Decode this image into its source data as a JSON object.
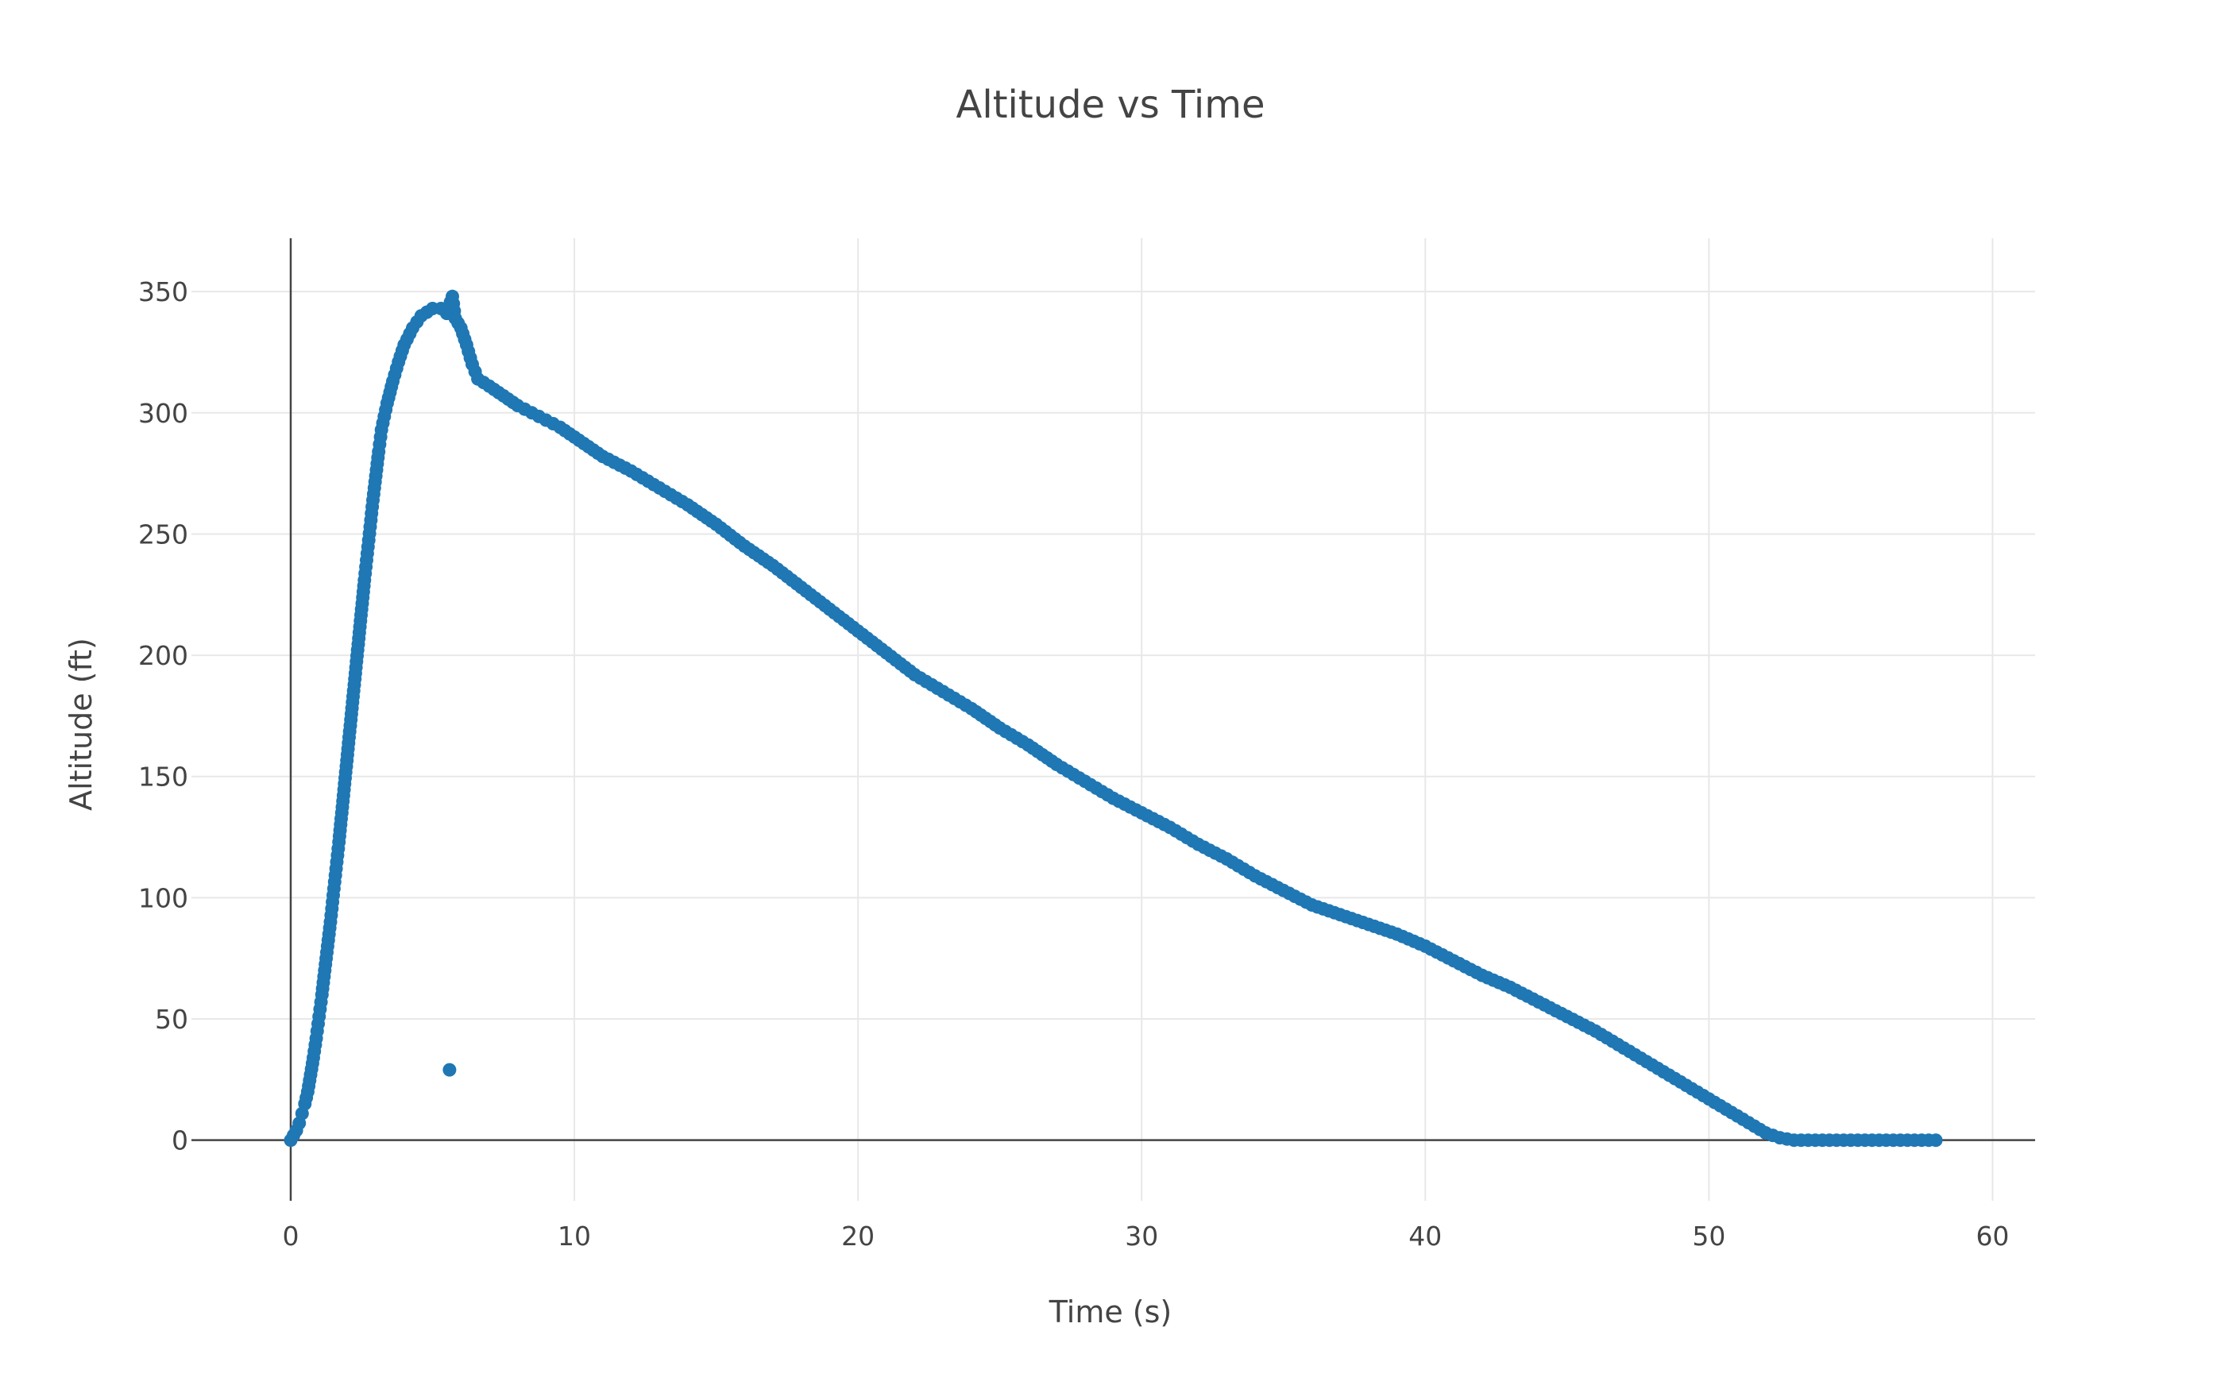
{
  "chart_data": {
    "type": "scatter",
    "title": "Altitude vs Time",
    "xlabel": "Time (s)",
    "ylabel": "Altitude (ft)",
    "xlim": [
      -3.5,
      61.5
    ],
    "ylim": [
      -25,
      372
    ],
    "x_ticks": [
      0,
      10,
      20,
      30,
      40,
      50,
      60
    ],
    "y_ticks": [
      0,
      50,
      100,
      150,
      200,
      250,
      300,
      350
    ],
    "grid": true,
    "legend": "none",
    "marker_color": "#1f77b4",
    "series": [
      {
        "values": [
          [
            0.0,
            0
          ],
          [
            0.1,
            2
          ],
          [
            0.2,
            4
          ],
          [
            0.3,
            7
          ],
          [
            0.4,
            11
          ],
          [
            0.5,
            15
          ],
          [
            0.6,
            20
          ],
          [
            0.7,
            27
          ],
          [
            0.8,
            34
          ],
          [
            0.9,
            42
          ],
          [
            1.0,
            51
          ],
          [
            1.1,
            60
          ],
          [
            1.2,
            70
          ],
          [
            1.3,
            80
          ],
          [
            1.4,
            90
          ],
          [
            1.5,
            101
          ],
          [
            1.6,
            112
          ],
          [
            1.7,
            123
          ],
          [
            1.8,
            135
          ],
          [
            1.9,
            147
          ],
          [
            2.0,
            159
          ],
          [
            2.1,
            171
          ],
          [
            2.2,
            183
          ],
          [
            2.3,
            195
          ],
          [
            2.4,
            207
          ],
          [
            2.5,
            219
          ],
          [
            2.6,
            231
          ],
          [
            2.7,
            242
          ],
          [
            2.8,
            253
          ],
          [
            2.9,
            264
          ],
          [
            3.0,
            274
          ],
          [
            3.1,
            284
          ],
          [
            3.2,
            293
          ],
          [
            3.4,
            304
          ],
          [
            3.6,
            313
          ],
          [
            3.8,
            321
          ],
          [
            4.0,
            328
          ],
          [
            4.3,
            335
          ],
          [
            4.6,
            340
          ],
          [
            5.0,
            343
          ],
          [
            5.3,
            343
          ],
          [
            5.5,
            341
          ],
          [
            5.7,
            348
          ],
          [
            5.8,
            339
          ],
          [
            6.0,
            335
          ],
          [
            6.2,
            328
          ],
          [
            6.4,
            320
          ],
          [
            6.6,
            314
          ],
          [
            7.0,
            311
          ],
          [
            7.5,
            307
          ],
          [
            8.0,
            303
          ],
          [
            8.5,
            300
          ],
          [
            9.0,
            297
          ],
          [
            9.5,
            294
          ],
          [
            10,
            290
          ],
          [
            11,
            282
          ],
          [
            12,
            276
          ],
          [
            13,
            269
          ],
          [
            14,
            262
          ],
          [
            15,
            254
          ],
          [
            16,
            245
          ],
          [
            17,
            237
          ],
          [
            18,
            228
          ],
          [
            19,
            219
          ],
          [
            20,
            210
          ],
          [
            21,
            201
          ],
          [
            22,
            192
          ],
          [
            23,
            185
          ],
          [
            24,
            178
          ],
          [
            25,
            170
          ],
          [
            26,
            163
          ],
          [
            27,
            155
          ],
          [
            28,
            148
          ],
          [
            29,
            141
          ],
          [
            30,
            135
          ],
          [
            31,
            129
          ],
          [
            32,
            122
          ],
          [
            33,
            116
          ],
          [
            34,
            109
          ],
          [
            35,
            103
          ],
          [
            36,
            97
          ],
          [
            37,
            93
          ],
          [
            38,
            89
          ],
          [
            39,
            85
          ],
          [
            40,
            80
          ],
          [
            41,
            74
          ],
          [
            42,
            68
          ],
          [
            43,
            63
          ],
          [
            44,
            57
          ],
          [
            45,
            51
          ],
          [
            46,
            45
          ],
          [
            47,
            38
          ],
          [
            48,
            31
          ],
          [
            49,
            24
          ],
          [
            50,
            17
          ],
          [
            51,
            10
          ],
          [
            52,
            3
          ],
          [
            52.5,
            1
          ],
          [
            53,
            0
          ],
          [
            53.5,
            0
          ],
          [
            54,
            0
          ],
          [
            54.5,
            0
          ],
          [
            55,
            0
          ],
          [
            55.5,
            0
          ],
          [
            56,
            0
          ],
          [
            56.5,
            0
          ],
          [
            57,
            0
          ],
          [
            57.5,
            0
          ],
          [
            58,
            0
          ],
          [
            5.6,
            29
          ]
        ]
      }
    ]
  }
}
